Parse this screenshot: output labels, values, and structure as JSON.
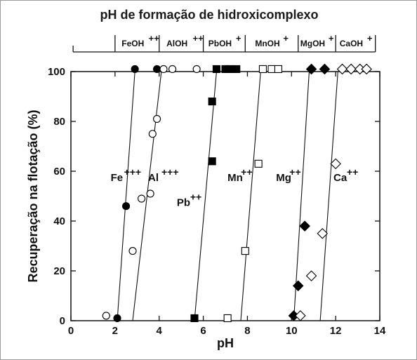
{
  "chart_data": {
    "type": "scatter",
    "title": "pH de formação de hidroxicomplexo",
    "xlabel": "pH",
    "ylabel": "Recuperação na flotação (%)",
    "xlim": [
      0,
      14
    ],
    "ylim": [
      0,
      100
    ],
    "xticks": [
      0,
      2,
      4,
      6,
      8,
      10,
      12,
      14
    ],
    "yticks": [
      0,
      20,
      40,
      60,
      80,
      100
    ],
    "grid": false,
    "hydroxocomplex_axis": {
      "boundaries": [
        2.0,
        4.0,
        6.0,
        7.9,
        10.3,
        12.0,
        13.8
      ],
      "segments": [
        {
          "ion": "FeOH",
          "charge": "++",
          "from": 2.0,
          "to": 4.0
        },
        {
          "ion": "AlOH",
          "charge": "++",
          "from": 4.0,
          "to": 6.0
        },
        {
          "ion": "PbOH",
          "charge": "+",
          "from": 6.0,
          "to": 7.9
        },
        {
          "ion": "MnOH",
          "charge": "+",
          "from": 7.9,
          "to": 10.3
        },
        {
          "ion": "MgOH",
          "charge": "+",
          "from": 10.3,
          "to": 12.0
        },
        {
          "ion": "CaOH",
          "charge": "+",
          "from": 12.0,
          "to": 13.8
        }
      ]
    },
    "series": [
      {
        "name": "Fe",
        "charge": "+++",
        "marker": "circle",
        "filled": true,
        "points": [
          [
            2.1,
            1
          ],
          [
            2.5,
            46
          ],
          [
            2.9,
            101
          ],
          [
            3.9,
            101
          ]
        ],
        "fit": [
          [
            2.1,
            0
          ],
          [
            2.9,
            100
          ]
        ],
        "label_at": [
          1.8,
          56
        ]
      },
      {
        "name": "Al",
        "charge": "+++",
        "marker": "circle",
        "filled": false,
        "points": [
          [
            1.6,
            2
          ],
          [
            2.8,
            28
          ],
          [
            3.2,
            49
          ],
          [
            3.6,
            51
          ],
          [
            3.7,
            75
          ],
          [
            3.9,
            81
          ],
          [
            4.2,
            101
          ],
          [
            4.6,
            101
          ],
          [
            5.7,
            101
          ]
        ],
        "fit": [
          [
            2.8,
            0
          ],
          [
            4.1,
            100
          ]
        ],
        "label_at": [
          3.5,
          56
        ]
      },
      {
        "name": "Pb",
        "charge": "++",
        "marker": "square",
        "filled": true,
        "points": [
          [
            5.6,
            1
          ],
          [
            6.4,
            64
          ],
          [
            6.4,
            88
          ],
          [
            6.6,
            101
          ],
          [
            7.0,
            101
          ],
          [
            7.2,
            101
          ],
          [
            7.5,
            101
          ]
        ],
        "fit": [
          [
            5.6,
            0
          ],
          [
            6.6,
            100
          ]
        ],
        "label_at": [
          4.8,
          46
        ]
      },
      {
        "name": "Mn",
        "charge": "++",
        "marker": "square",
        "filled": false,
        "points": [
          [
            7.1,
            1
          ],
          [
            7.9,
            28
          ],
          [
            8.5,
            63
          ],
          [
            8.7,
            101
          ],
          [
            9.1,
            101
          ],
          [
            9.4,
            101
          ]
        ],
        "fit": [
          [
            7.7,
            0
          ],
          [
            8.6,
            100
          ]
        ],
        "label_at": [
          7.1,
          56
        ]
      },
      {
        "name": "Mg",
        "charge": "++",
        "marker": "diamond",
        "filled": true,
        "points": [
          [
            10.1,
            2
          ],
          [
            10.3,
            14
          ],
          [
            10.6,
            38
          ],
          [
            10.9,
            101
          ],
          [
            11.5,
            101
          ]
        ],
        "fit": [
          [
            10.1,
            0
          ],
          [
            10.8,
            100
          ]
        ],
        "label_at": [
          9.3,
          56
        ]
      },
      {
        "name": "Ca",
        "charge": "++",
        "marker": "diamond",
        "filled": false,
        "points": [
          [
            10.4,
            2
          ],
          [
            10.9,
            18
          ],
          [
            11.4,
            35
          ],
          [
            12.0,
            63
          ],
          [
            12.3,
            101
          ],
          [
            12.7,
            101
          ],
          [
            13.1,
            101
          ],
          [
            13.4,
            101
          ]
        ],
        "fit": [
          [
            11.3,
            0
          ],
          [
            12.1,
            100
          ]
        ],
        "label_at": [
          11.9,
          56
        ]
      }
    ]
  }
}
